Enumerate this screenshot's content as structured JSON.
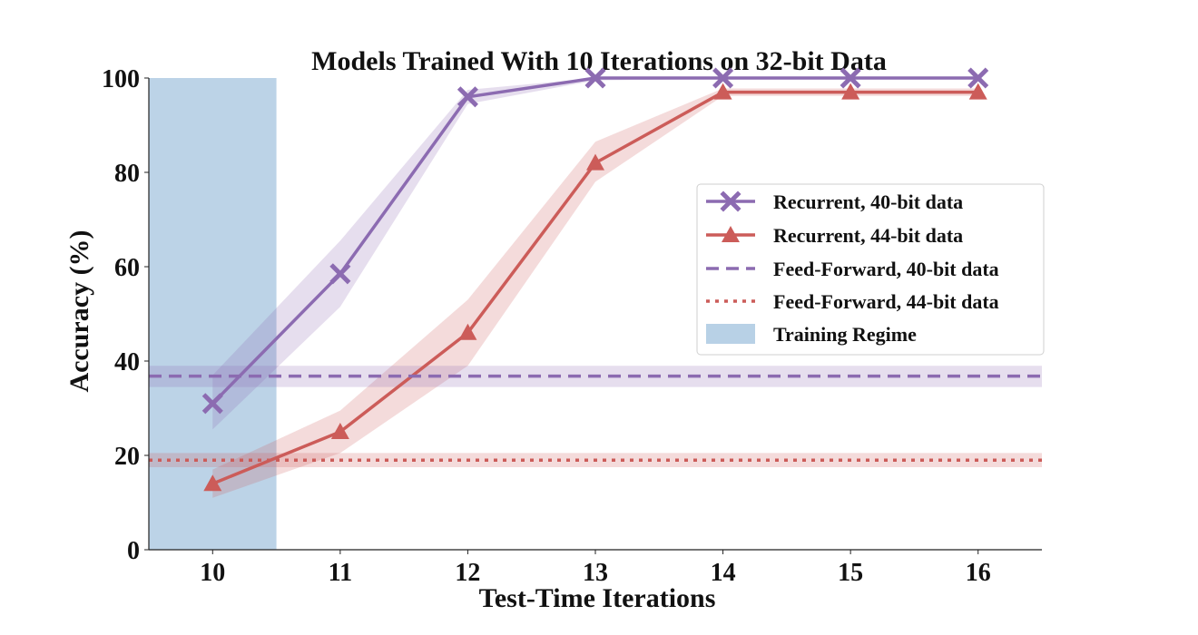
{
  "chart_data": {
    "type": "line",
    "title": "Models Trained With 10 Iterations on 32-bit Data",
    "xlabel": "Test-Time Iterations",
    "ylabel": "Accuracy (%)",
    "x": [
      10,
      11,
      12,
      13,
      14,
      15,
      16
    ],
    "xlim": [
      9.5,
      16.5
    ],
    "ylim": [
      0,
      100
    ],
    "xticks": [
      "10",
      "11",
      "12",
      "13",
      "14",
      "15",
      "16"
    ],
    "yticks": [
      "0",
      "20",
      "40",
      "60",
      "80",
      "100"
    ],
    "training_regime": [
      9.5,
      10.5
    ],
    "series": [
      {
        "name": "Recurrent, 40-bit data",
        "style": "solid",
        "marker": "x",
        "color": "#8c6bb1",
        "values": [
          31,
          58.5,
          96,
          100,
          100,
          100,
          100
        ],
        "lower": [
          25.5,
          51.5,
          94.5,
          99.5,
          99.8,
          99.8,
          99.8
        ],
        "upper": [
          37,
          65.5,
          97.5,
          100,
          100,
          100,
          100
        ]
      },
      {
        "name": "Recurrent, 44-bit data",
        "style": "solid",
        "marker": "triangle",
        "color": "#cc5c59",
        "values": [
          14,
          25,
          46,
          82,
          97,
          97,
          97
        ],
        "lower": [
          11,
          20.5,
          39,
          78,
          96.2,
          96.2,
          96.2
        ],
        "upper": [
          17,
          29.5,
          53,
          86.5,
          97.8,
          97.8,
          97.8
        ]
      },
      {
        "name": "Feed-Forward, 40-bit data",
        "style": "dashed",
        "color": "#8c6bb1",
        "constant": 36.8,
        "lower": 34.5,
        "upper": 39
      },
      {
        "name": "Feed-Forward, 44-bit data",
        "style": "dotted",
        "color": "#cc5c59",
        "constant": 19,
        "lower": 17.5,
        "upper": 20.5
      }
    ],
    "legend": {
      "placement": "right",
      "entries": [
        "Recurrent, 40-bit data",
        "Recurrent, 44-bit data",
        "Feed-Forward, 40-bit data",
        "Feed-Forward, 44-bit data",
        "Training Regime"
      ]
    },
    "colors": {
      "purple": "#8c6bb1",
      "red": "#cc5c59",
      "regime": "#b8d1e6"
    }
  }
}
